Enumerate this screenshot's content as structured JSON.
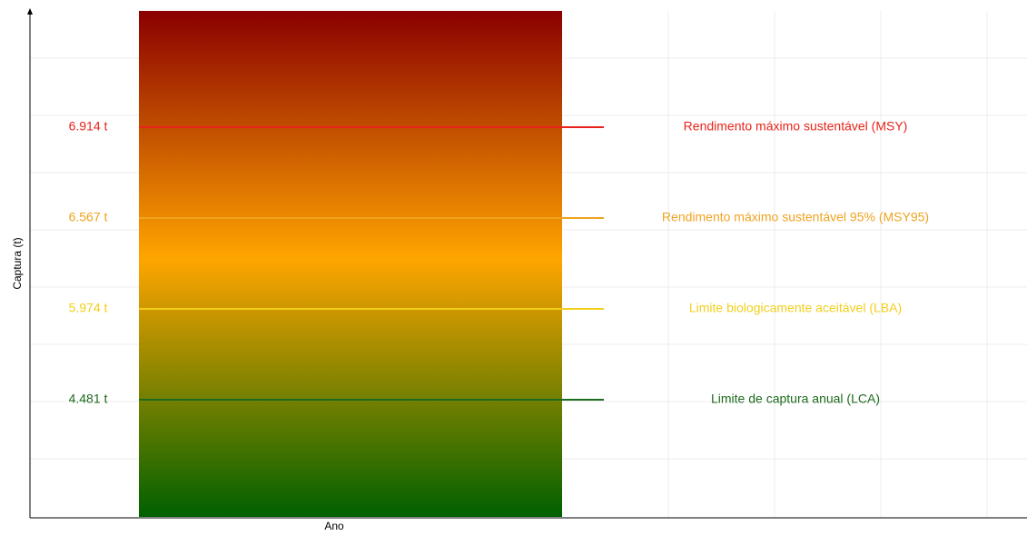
{
  "chart_data": {
    "type": "reference-lines",
    "ylabel": "Captura (t)",
    "xlabel": "Ano",
    "grid": true,
    "series": [
      {
        "name": "Rendimento máximo sustentável (MSY)",
        "color": "#e8231b",
        "values": [
          6914
        ],
        "value_labels": [
          "6.914 t"
        ]
      },
      {
        "name": "Rendimento máximo sustentável 95% (MSY95)",
        "color": "#efa320",
        "values": [
          6567
        ],
        "value_labels": [
          "6.567 t"
        ]
      },
      {
        "name": "Limite biologicamente aceitável (LBA)",
        "color": "#f2cf1a",
        "values": [
          5974
        ],
        "value_labels": [
          "5.974 t"
        ]
      },
      {
        "name": "Limite de captura anual (LCA)",
        "color": "#1d6b1d",
        "values": [
          4481
        ],
        "value_labels": [
          "4.481 t"
        ]
      }
    ]
  }
}
